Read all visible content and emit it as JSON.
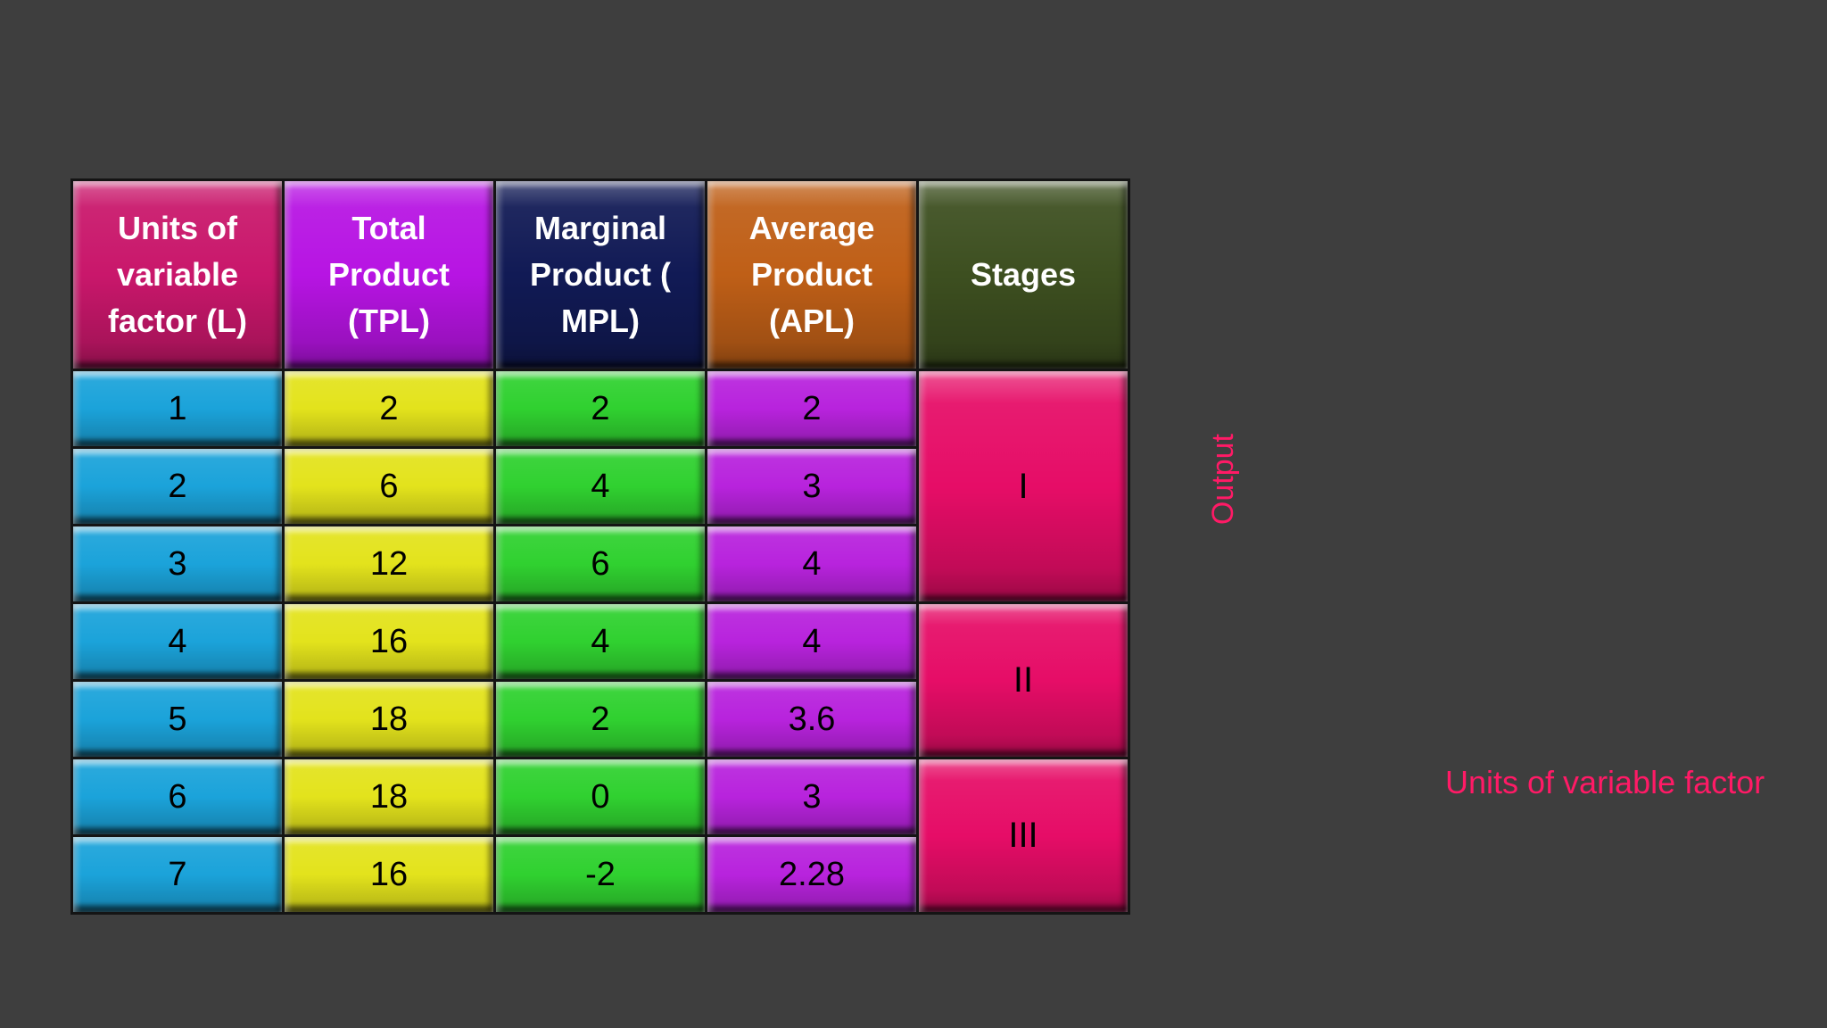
{
  "slide": {
    "background_color": "#3e3e3e"
  },
  "chart_data": {
    "type": "table",
    "columns": [
      "Units of variable factor (L)",
      "Total Product (TPL)",
      "Marginal Product ( MPL)",
      "Average Product (APL)",
      "Stages"
    ],
    "rows": [
      [
        1,
        2,
        2,
        2,
        "I"
      ],
      [
        2,
        6,
        4,
        3,
        "I"
      ],
      [
        3,
        12,
        6,
        4,
        "I"
      ],
      [
        4,
        16,
        4,
        4,
        "II"
      ],
      [
        5,
        18,
        2,
        3.6,
        "II"
      ],
      [
        6,
        18,
        0,
        3,
        "III"
      ],
      [
        7,
        16,
        -2,
        2.28,
        "III"
      ]
    ],
    "xlabel": "Units of variable factor",
    "ylabel": "Output"
  },
  "table": {
    "headers": [
      "Units of variable factor (L)",
      "Total Product (TPL)",
      "Marginal Product ( MPL)",
      "Average Product (APL)",
      "Stages"
    ],
    "rows": [
      {
        "l": "1",
        "tpl": "2",
        "mpl": "2",
        "apl": "2"
      },
      {
        "l": "2",
        "tpl": "6",
        "mpl": "4",
        "apl": "3"
      },
      {
        "l": "3",
        "tpl": "12",
        "mpl": "6",
        "apl": "4"
      },
      {
        "l": "4",
        "tpl": "16",
        "mpl": "4",
        "apl": "4"
      },
      {
        "l": "5",
        "tpl": "18",
        "mpl": "2",
        "apl": "3.6"
      },
      {
        "l": "6",
        "tpl": "18",
        "mpl": "0",
        "apl": "3"
      },
      {
        "l": "7",
        "tpl": "16",
        "mpl": "-2",
        "apl": "2.28"
      }
    ],
    "stages": [
      {
        "label": "I"
      },
      {
        "label": "II"
      },
      {
        "label": "III"
      }
    ],
    "colors": {
      "header_units": "#c9176b",
      "header_tpl": "#b714e3",
      "header_mpl": "#111a55",
      "header_apl": "#bf5f17",
      "header_stages": "#3d4f20",
      "cells_units": "#1ba3da",
      "cells_tpl": "#e3e31c",
      "cells_mpl": "#30d130",
      "cells_apl": "#b823dd",
      "cells_stages": "#e60d67"
    }
  },
  "annotations": {
    "y_axis_label": "Output",
    "x_axis_label": "Units of variable factor",
    "label_color": "#ff1a66"
  }
}
